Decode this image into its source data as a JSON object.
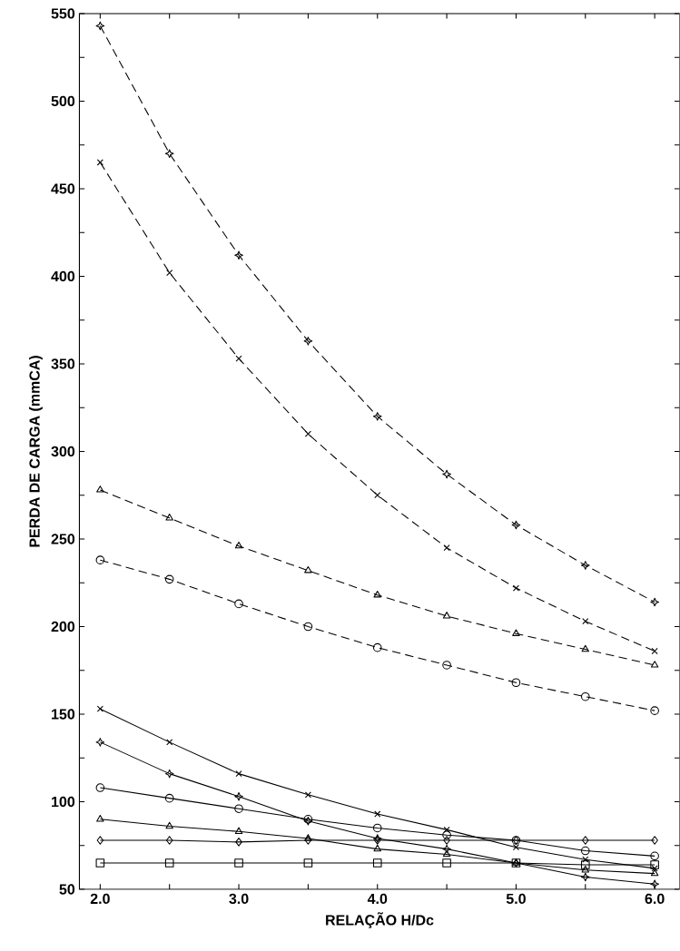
{
  "chart_data": {
    "type": "line",
    "xlabel": "RELAÇÃO H/Dc",
    "ylabel": "PERDA DE CARGA (mmCA)",
    "x": [
      2.0,
      2.5,
      3.0,
      3.5,
      4.0,
      4.5,
      5.0,
      5.5,
      6.0
    ],
    "xlim": [
      1.85,
      6.18
    ],
    "ylim": [
      50,
      550
    ],
    "xticks": [
      {
        "value": 2.0,
        "label": "2.0"
      },
      {
        "value": 2.5,
        "label": null
      },
      {
        "value": 3.0,
        "label": "3.0"
      },
      {
        "value": 3.5,
        "label": null
      },
      {
        "value": 4.0,
        "label": "4.0"
      },
      {
        "value": 4.5,
        "label": null
      },
      {
        "value": 5.0,
        "label": "5.0"
      },
      {
        "value": 5.5,
        "label": null
      },
      {
        "value": 6.0,
        "label": "6.0"
      }
    ],
    "yticks": [
      50,
      {
        "value": 75,
        "label": null
      },
      100,
      {
        "value": 125,
        "label": null
      },
      150,
      {
        "value": 175,
        "label": null
      },
      200,
      {
        "value": 225,
        "label": null
      },
      250,
      {
        "value": 275,
        "label": null
      },
      300,
      {
        "value": 325,
        "label": null
      },
      350,
      {
        "value": 375,
        "label": null
      },
      400,
      {
        "value": 425,
        "label": null
      },
      450,
      {
        "value": 475,
        "label": null
      },
      500,
      {
        "value": 525,
        "label": null
      },
      550
    ],
    "series": [
      {
        "color": "#000000",
        "marker": "star",
        "line_style": "dashed",
        "values": [
          543,
          470,
          412,
          363,
          320,
          287,
          258,
          235,
          214
        ]
      },
      {
        "color": "#000000",
        "marker": "cross",
        "line_style": "dashed",
        "values": [
          465,
          402,
          353,
          310,
          275,
          245,
          222,
          203,
          186
        ]
      },
      {
        "color": "#000000",
        "marker": "triangle",
        "line_style": "dashed",
        "values": [
          278,
          262,
          246,
          232,
          218,
          206,
          196,
          187,
          178
        ]
      },
      {
        "color": "#000000",
        "marker": "circle",
        "line_style": "dashed",
        "values": [
          238,
          227,
          213,
          200,
          188,
          178,
          168,
          160,
          152
        ]
      },
      {
        "color": "#000000",
        "marker": "cross",
        "line_style": "solid",
        "values": [
          153,
          134,
          116,
          104,
          93,
          84,
          74,
          67,
          62
        ]
      },
      {
        "color": "#000000",
        "marker": "star",
        "line_style": "solid",
        "values": [
          134,
          116,
          103,
          89,
          79,
          73,
          65,
          57,
          53
        ]
      },
      {
        "color": "#000000",
        "marker": "circle",
        "line_style": "solid",
        "values": [
          108,
          102,
          96,
          90,
          85,
          81,
          78,
          72,
          69
        ]
      },
      {
        "color": "#000000",
        "marker": "triangle",
        "line_style": "solid",
        "values": [
          90,
          86,
          83,
          79,
          73,
          70,
          65,
          61,
          59
        ]
      },
      {
        "color": "#000000",
        "marker": "diamond",
        "line_style": "solid",
        "values": [
          78,
          78,
          77,
          78,
          78,
          78,
          78,
          78,
          78
        ]
      },
      {
        "color": "#000000",
        "marker": "square",
        "line_style": "solid",
        "values": [
          65,
          65,
          65,
          65,
          65,
          65,
          65,
          64,
          64
        ]
      }
    ]
  }
}
